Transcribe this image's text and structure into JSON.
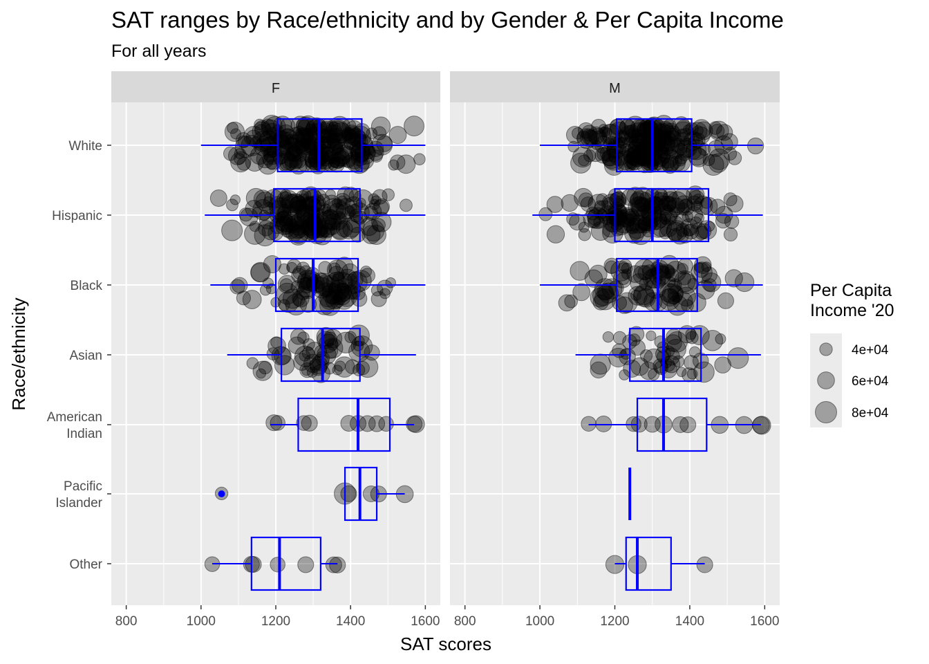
{
  "chart_data": {
    "type": "boxplot",
    "title": "SAT ranges by Race/ethnicity and by Gender & Per Capita Income",
    "subtitle": "For all years",
    "xlabel": "SAT scores",
    "ylabel": "Race/ethnicity",
    "xlim": [
      760,
      1640
    ],
    "x_ticks": [
      "800",
      "1000",
      "1200",
      "1400",
      "1600"
    ],
    "categories": [
      "White",
      "Hispanic",
      "Black",
      "Asian",
      "American\nIndian",
      "Pacific\nIslander",
      "Other"
    ],
    "facets": [
      "F",
      "M"
    ],
    "box_color": "#0000ff",
    "point_color": "#000000",
    "panel_bg": "#ebebeb",
    "strip_bg": "#d9d9d9",
    "legend": {
      "title": "Per Capita\nIncome '20",
      "position": "right",
      "entries": [
        "4e+04",
        "6e+04",
        "8e+04"
      ],
      "values": [
        40000,
        60000,
        80000
      ]
    },
    "series": [
      {
        "facet": "F",
        "boxes": [
          {
            "category": "White",
            "whisker_low": 1000,
            "q1": 1205,
            "median": 1315,
            "q3": 1430,
            "whisker_high": 1600
          },
          {
            "category": "Hispanic",
            "whisker_low": 1010,
            "q1": 1195,
            "median": 1305,
            "q3": 1425,
            "whisker_high": 1600
          },
          {
            "category": "Black",
            "whisker_low": 1025,
            "q1": 1200,
            "median": 1300,
            "q3": 1420,
            "whisker_high": 1600
          },
          {
            "category": "Asian",
            "whisker_low": 1070,
            "q1": 1215,
            "median": 1325,
            "q3": 1425,
            "whisker_high": 1575
          },
          {
            "category": "American\nIndian",
            "whisker_low": 1185,
            "q1": 1260,
            "median": 1420,
            "q3": 1505,
            "whisker_high": 1570
          },
          {
            "category": "Pacific\nIslander",
            "whisker_low": 1385,
            "q1": 1385,
            "median": 1425,
            "q3": 1470,
            "whisker_high": 1545,
            "outliers": [
              1055
            ]
          },
          {
            "category": "Other",
            "whisker_low": 1030,
            "q1": 1135,
            "median": 1210,
            "q3": 1320,
            "whisker_high": 1365
          }
        ],
        "points": [
          {
            "category": "American\nIndian",
            "x": 1195,
            "income": 55000
          },
          {
            "category": "American\nIndian",
            "x": 1205,
            "income": 50000
          },
          {
            "category": "American\nIndian",
            "x": 1275,
            "income": 50000
          },
          {
            "category": "American\nIndian",
            "x": 1290,
            "income": 55000
          },
          {
            "category": "American\nIndian",
            "x": 1395,
            "income": 55000
          },
          {
            "category": "American\nIndian",
            "x": 1420,
            "income": 55000
          },
          {
            "category": "American\nIndian",
            "x": 1445,
            "income": 55000
          },
          {
            "category": "American\nIndian",
            "x": 1470,
            "income": 55000
          },
          {
            "category": "American\nIndian",
            "x": 1495,
            "income": 50000
          },
          {
            "category": "American\nIndian",
            "x": 1570,
            "income": 55000
          },
          {
            "category": "American\nIndian",
            "x": 1575,
            "income": 60000
          },
          {
            "category": "Pacific\nIslander",
            "x": 1055,
            "income": 40000
          },
          {
            "category": "Pacific\nIslander",
            "x": 1385,
            "income": 80000
          },
          {
            "category": "Pacific\nIslander",
            "x": 1395,
            "income": 55000
          },
          {
            "category": "Pacific\nIslander",
            "x": 1455,
            "income": 55000
          },
          {
            "category": "Pacific\nIslander",
            "x": 1475,
            "income": 55000
          },
          {
            "category": "Pacific\nIslander",
            "x": 1545,
            "income": 60000
          },
          {
            "category": "Other",
            "x": 1030,
            "income": 50000
          },
          {
            "category": "Other",
            "x": 1135,
            "income": 55000
          },
          {
            "category": "Other",
            "x": 1140,
            "income": 55000
          },
          {
            "category": "Other",
            "x": 1205,
            "income": 50000
          },
          {
            "category": "Other",
            "x": 1280,
            "income": 55000
          },
          {
            "category": "Other",
            "x": 1355,
            "income": 55000
          },
          {
            "category": "Other",
            "x": 1365,
            "income": 55000
          }
        ]
      },
      {
        "facet": "M",
        "boxes": [
          {
            "category": "White",
            "whisker_low": 1000,
            "q1": 1205,
            "median": 1300,
            "q3": 1405,
            "whisker_high": 1595
          },
          {
            "category": "Hispanic",
            "whisker_low": 980,
            "q1": 1200,
            "median": 1300,
            "q3": 1450,
            "whisker_high": 1595
          },
          {
            "category": "Black",
            "whisker_low": 1000,
            "q1": 1205,
            "median": 1315,
            "q3": 1420,
            "whisker_high": 1595
          },
          {
            "category": "Asian",
            "whisker_low": 1095,
            "q1": 1240,
            "median": 1330,
            "q3": 1430,
            "whisker_high": 1590
          },
          {
            "category": "American\nIndian",
            "whisker_low": 1130,
            "q1": 1260,
            "median": 1330,
            "q3": 1445,
            "whisker_high": 1590
          },
          {
            "category": "Pacific\nIslander",
            "whisker_low": 1240,
            "q1": 1240,
            "median": 1240,
            "q3": 1240,
            "whisker_high": 1240
          },
          {
            "category": "Other",
            "whisker_low": 1200,
            "q1": 1230,
            "median": 1260,
            "q3": 1350,
            "whisker_high": 1440
          }
        ],
        "points": [
          {
            "category": "American\nIndian",
            "x": 1130,
            "income": 50000
          },
          {
            "category": "American\nIndian",
            "x": 1170,
            "income": 55000
          },
          {
            "category": "American\nIndian",
            "x": 1250,
            "income": 50000
          },
          {
            "category": "American\nIndian",
            "x": 1265,
            "income": 55000
          },
          {
            "category": "American\nIndian",
            "x": 1300,
            "income": 55000
          },
          {
            "category": "American\nIndian",
            "x": 1330,
            "income": 60000
          },
          {
            "category": "American\nIndian",
            "x": 1375,
            "income": 55000
          },
          {
            "category": "American\nIndian",
            "x": 1395,
            "income": 55000
          },
          {
            "category": "American\nIndian",
            "x": 1480,
            "income": 60000
          },
          {
            "category": "American\nIndian",
            "x": 1545,
            "income": 60000
          },
          {
            "category": "American\nIndian",
            "x": 1590,
            "income": 60000
          },
          {
            "category": "American\nIndian",
            "x": 1592,
            "income": 65000
          },
          {
            "category": "Other",
            "x": 1200,
            "income": 65000
          },
          {
            "category": "Other",
            "x": 1260,
            "income": 65000
          },
          {
            "category": "Other",
            "x": 1440,
            "income": 55000
          }
        ]
      }
    ]
  }
}
